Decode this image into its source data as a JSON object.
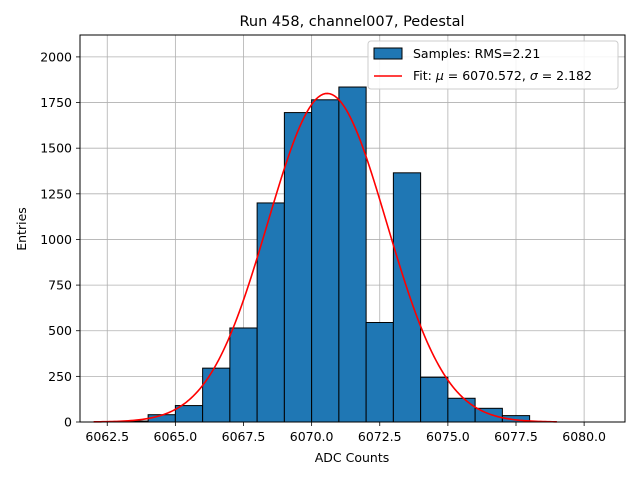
{
  "chart_data": {
    "type": "bar",
    "subtype": "histogram",
    "title": "Run 458, channel007, Pedestal",
    "xlabel": "ADC Counts",
    "ylabel": "Entries",
    "xlim": [
      6061.5,
      6081.5
    ],
    "ylim": [
      0,
      2120
    ],
    "grid": true,
    "legend_position": "top-right",
    "xticks": [
      6062.5,
      6065.0,
      6067.5,
      6070.0,
      6072.5,
      6075.0,
      6077.5,
      6080.0
    ],
    "xtick_labels": [
      "6062.5",
      "6065.0",
      "6067.5",
      "6070.0",
      "6072.5",
      "6075.0",
      "6077.5",
      "6080.0"
    ],
    "yticks": [
      0,
      250,
      500,
      750,
      1000,
      1250,
      1500,
      1750,
      2000
    ],
    "ytick_labels": [
      "0",
      "250",
      "500",
      "750",
      "1000",
      "1250",
      "1500",
      "1750",
      "2000"
    ],
    "bins": [
      {
        "left": 6063,
        "right": 6064,
        "value": 5
      },
      {
        "left": 6064,
        "right": 6065,
        "value": 40
      },
      {
        "left": 6065,
        "right": 6066,
        "value": 90
      },
      {
        "left": 6066,
        "right": 6067,
        "value": 295
      },
      {
        "left": 6067,
        "right": 6068,
        "value": 515
      },
      {
        "left": 6068,
        "right": 6069,
        "value": 1200
      },
      {
        "left": 6069,
        "right": 6070,
        "value": 1695
      },
      {
        "left": 6070,
        "right": 6071,
        "value": 1765
      },
      {
        "left": 6071,
        "right": 6072,
        "value": 1835
      },
      {
        "left": 6072,
        "right": 6073,
        "value": 545
      },
      {
        "left": 6073,
        "right": 6074,
        "value": 1365
      },
      {
        "left": 6074,
        "right": 6075,
        "value": 245
      },
      {
        "left": 6075,
        "right": 6076,
        "value": 130
      },
      {
        "left": 6076,
        "right": 6077,
        "value": 75
      },
      {
        "left": 6077,
        "right": 6078,
        "value": 35
      }
    ],
    "fit": {
      "mu": 6070.572,
      "sigma": 2.182,
      "amplitude": 1800,
      "x_range": [
        6062,
        6079
      ]
    },
    "series": [
      {
        "name": "Samples: RMS=2.21",
        "kind": "histogram",
        "color": "#1f77b4",
        "edge_color": "#000000"
      },
      {
        "name": "Fit",
        "kind": "line",
        "color": "#ff0000"
      }
    ],
    "legend": {
      "samples_label": "Samples: RMS=2.21",
      "fit_prefix": "Fit: ",
      "mu_symbol": "μ",
      "mu_text": " = 6070.572, ",
      "sigma_symbol": "σ",
      "sigma_text": " = 2.182"
    }
  }
}
